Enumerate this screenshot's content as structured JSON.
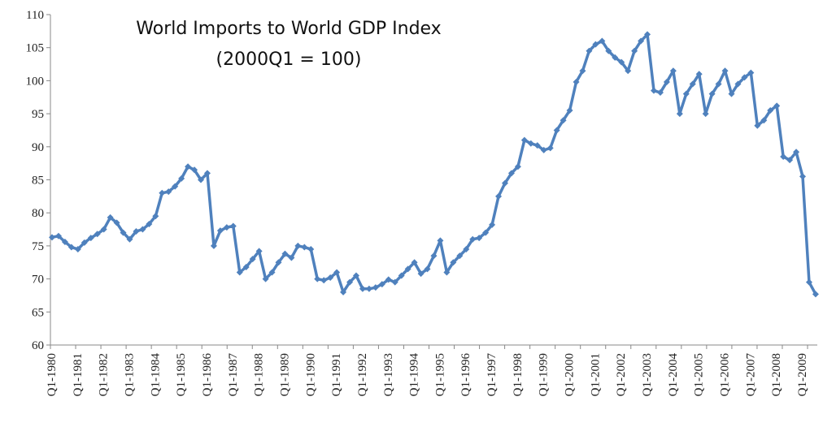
{
  "chart_data": {
    "type": "line",
    "title_line1": "World Imports to World GDP Index",
    "title_line2": "(2000Q1 = 100)",
    "xlabel": "",
    "ylabel": "",
    "ylim": [
      60,
      110
    ],
    "yticks": [
      60,
      65,
      70,
      75,
      80,
      85,
      90,
      95,
      100,
      105,
      110
    ],
    "x_tick_labels": [
      "Q1-1980",
      "Q1-1981",
      "Q1-1982",
      "Q1-1983",
      "Q1-1984",
      "Q1-1985",
      "Q1-1986",
      "Q1-1987",
      "Q1-1988",
      "Q1-1989",
      "Q1-1990",
      "Q1-1991",
      "Q1-1992",
      "Q1-1993",
      "Q1-1994",
      "Q1-1995",
      "Q1-1996",
      "Q1-1997",
      "Q1-1998",
      "Q1-1999",
      "Q1-2000",
      "Q1-2001",
      "Q1-2002",
      "Q1-2003",
      "Q1-2004",
      "Q1-2005",
      "Q1-2006",
      "Q1-2007",
      "Q1-2008",
      "Q1-2009"
    ],
    "grid": false,
    "legend": "none",
    "series_color": "#4f81bd",
    "series": [
      {
        "values": [
          76.3,
          76.5,
          75.6,
          74.8,
          74.5,
          75.5,
          76.2,
          76.8,
          77.5,
          79.3,
          78.5,
          77.0,
          76.0,
          77.2,
          77.5,
          78.3,
          79.5,
          83.0,
          83.2,
          84.0,
          85.2,
          87.0,
          86.5,
          85.0,
          86.0,
          75.0,
          77.3,
          77.8,
          78.0,
          71.0,
          71.8,
          73.0,
          74.2,
          70.0,
          71.0,
          72.5,
          73.8,
          73.2,
          75.0,
          74.8,
          74.5,
          70.0,
          69.8,
          70.2,
          71.0,
          68.0,
          69.5,
          70.5,
          68.5,
          68.5,
          68.7,
          69.2,
          69.9,
          69.5,
          70.5,
          71.5,
          72.5,
          70.8,
          71.5,
          73.5,
          75.8,
          71.0,
          72.5,
          73.5,
          74.5,
          76.0,
          76.2,
          77.0,
          78.2,
          82.5,
          84.5,
          86.0,
          87.0,
          91.0,
          90.5,
          90.2,
          89.5,
          89.8,
          92.5,
          94.0,
          95.5,
          99.8,
          101.5,
          104.5,
          105.5,
          106.0,
          104.5,
          103.5,
          102.8,
          101.5,
          104.5,
          106.0,
          107.0,
          98.5,
          98.2,
          99.8,
          101.5,
          95.0,
          98.0,
          99.5,
          101.0,
          95.0,
          98.0,
          99.5,
          101.5,
          98.0,
          99.5,
          100.5,
          101.2,
          93.2,
          94.0,
          95.5,
          96.2,
          88.5,
          88.0,
          89.2,
          85.5,
          69.5,
          67.7
        ]
      }
    ]
  }
}
